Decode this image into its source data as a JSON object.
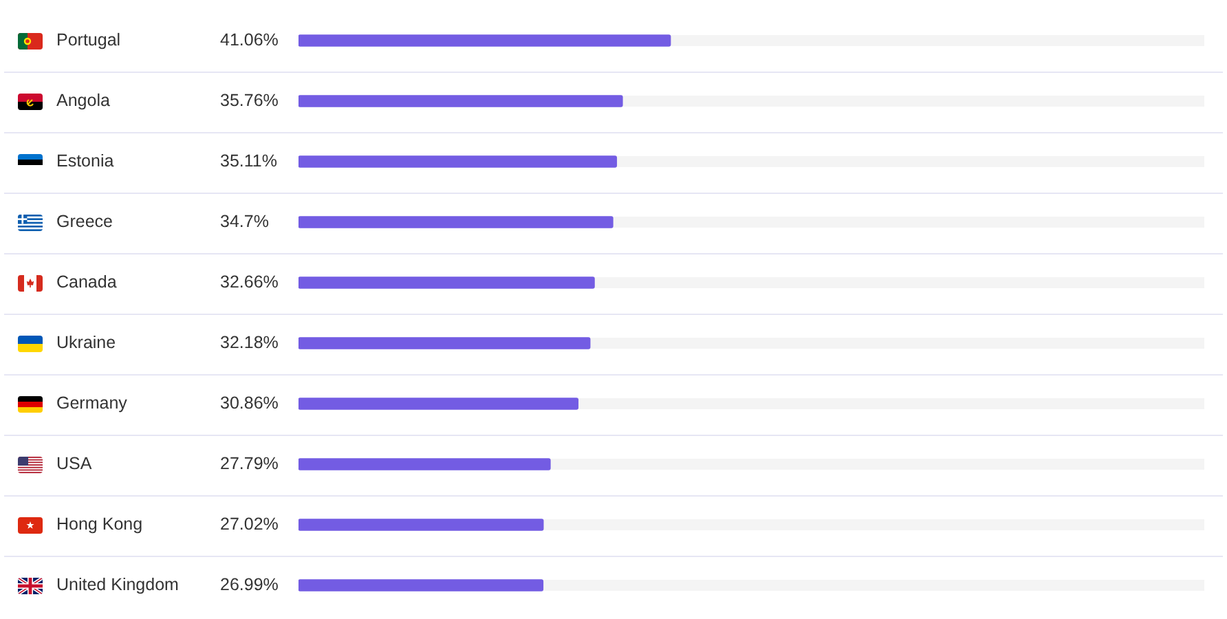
{
  "chart_data": {
    "type": "bar",
    "orientation": "horizontal",
    "categories": [
      "Portugal",
      "Angola",
      "Estonia",
      "Greece",
      "Canada",
      "Ukraine",
      "Germany",
      "USA",
      "Hong Kong",
      "United Kingdom"
    ],
    "values": [
      41.06,
      35.76,
      35.11,
      34.7,
      32.66,
      32.18,
      30.86,
      27.79,
      27.02,
      26.99
    ],
    "value_labels": [
      "41.06%",
      "35.76%",
      "35.11%",
      "34.7%",
      "32.66%",
      "32.18%",
      "30.86%",
      "27.79%",
      "27.02%",
      "26.99%"
    ],
    "color": "#735ce3",
    "xlim": [
      0,
      100
    ],
    "grid": "y",
    "tick_labels": "y"
  }
}
